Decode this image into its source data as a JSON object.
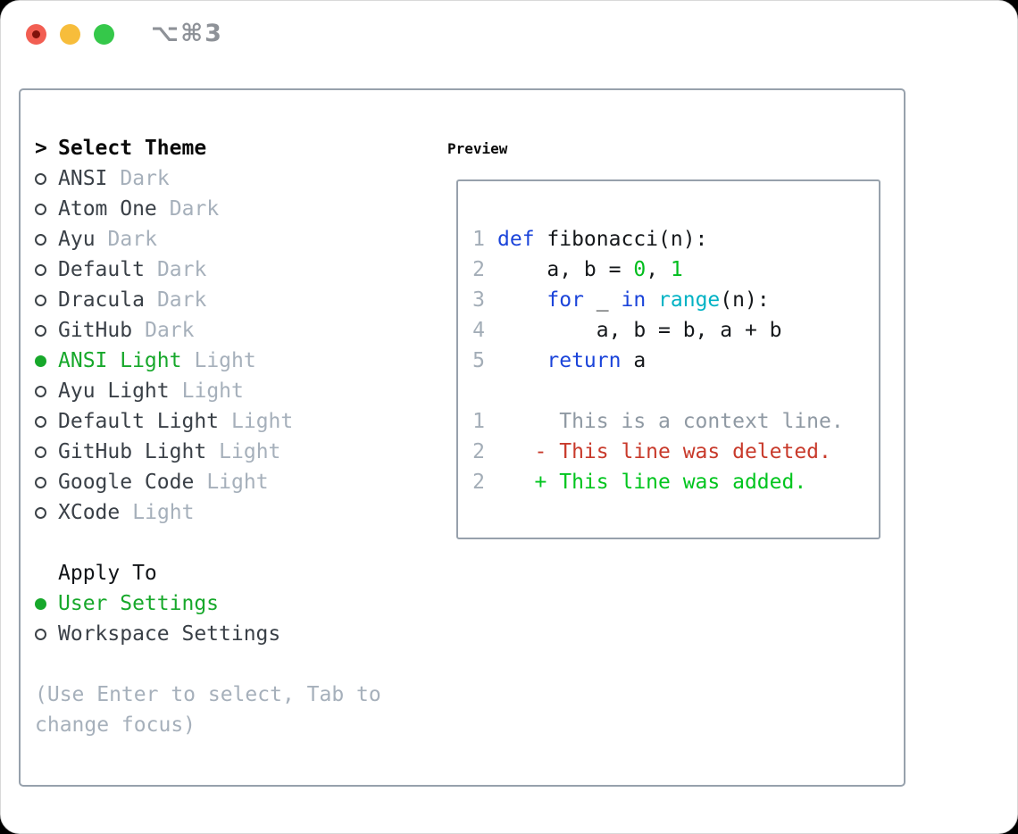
{
  "window": {
    "title": "⌥⌘3"
  },
  "picker": {
    "prompt": ">",
    "title": "Select Theme",
    "themes": [
      {
        "name": "ANSI",
        "tag": "Dark",
        "selected": false
      },
      {
        "name": "Atom One",
        "tag": "Dark",
        "selected": false
      },
      {
        "name": "Ayu",
        "tag": "Dark",
        "selected": false
      },
      {
        "name": "Default",
        "tag": "Dark",
        "selected": false
      },
      {
        "name": "Dracula",
        "tag": "Dark",
        "selected": false
      },
      {
        "name": "GitHub",
        "tag": "Dark",
        "selected": false
      },
      {
        "name": "ANSI Light",
        "tag": "Light",
        "selected": true
      },
      {
        "name": "Ayu Light",
        "tag": "Light",
        "selected": false
      },
      {
        "name": "Default Light",
        "tag": "Light",
        "selected": false
      },
      {
        "name": "GitHub Light",
        "tag": "Light",
        "selected": false
      },
      {
        "name": "Google Code",
        "tag": "Light",
        "selected": false
      },
      {
        "name": "XCode",
        "tag": "Light",
        "selected": false
      }
    ],
    "apply_to": {
      "title": "Apply To",
      "options": [
        {
          "name": "User Settings",
          "selected": true
        },
        {
          "name": "Workspace Settings",
          "selected": false
        }
      ]
    },
    "help_line1": "(Use Enter to select, Tab to",
    "help_line2": "change focus)"
  },
  "preview": {
    "title": "Preview",
    "code": [
      {
        "num": "1",
        "tokens": [
          {
            "text": "def",
            "type": "kw"
          },
          {
            "text": " fibonacci(n):",
            "type": "plain"
          }
        ]
      },
      {
        "num": "2",
        "tokens": [
          {
            "text": "    a, b = ",
            "type": "plain"
          },
          {
            "text": "0",
            "type": "num"
          },
          {
            "text": ", ",
            "type": "plain"
          },
          {
            "text": "1",
            "type": "num"
          }
        ]
      },
      {
        "num": "3",
        "tokens": [
          {
            "text": "    ",
            "type": "plain"
          },
          {
            "text": "for",
            "type": "kw"
          },
          {
            "text": " _ ",
            "type": "plain"
          },
          {
            "text": "in",
            "type": "kw"
          },
          {
            "text": " ",
            "type": "plain"
          },
          {
            "text": "range",
            "type": "builtin"
          },
          {
            "text": "(n):",
            "type": "plain"
          }
        ]
      },
      {
        "num": "4",
        "tokens": [
          {
            "text": "        a, b = b, a + b",
            "type": "plain"
          }
        ]
      },
      {
        "num": "5",
        "tokens": [
          {
            "text": "    ",
            "type": "plain"
          },
          {
            "text": "return",
            "type": "kw"
          },
          {
            "text": " a",
            "type": "plain"
          }
        ]
      }
    ],
    "diff": [
      {
        "num": "1",
        "kind": "context",
        "text": "     This is a context line."
      },
      {
        "num": "2",
        "kind": "deleted",
        "text": "   - This line was deleted."
      },
      {
        "num": "2",
        "kind": "added",
        "text": "   + This line was added."
      }
    ]
  },
  "colors": {
    "accent_green": "#17a82b",
    "keyword_blue": "#1b44da",
    "builtin_cyan": "#00b2c4",
    "number_green": "#00bd1d",
    "added_green": "#00c51e",
    "deleted_red": "#c83a2b",
    "muted_gray": "#a6b0bb",
    "line_number_gray": "#a3adb7",
    "context_gray": "#8f99a3",
    "panel_border": "#97a1ac",
    "traffic_red": "#f25e52",
    "traffic_yellow": "#f7bd3b",
    "traffic_green": "#35c84a"
  }
}
